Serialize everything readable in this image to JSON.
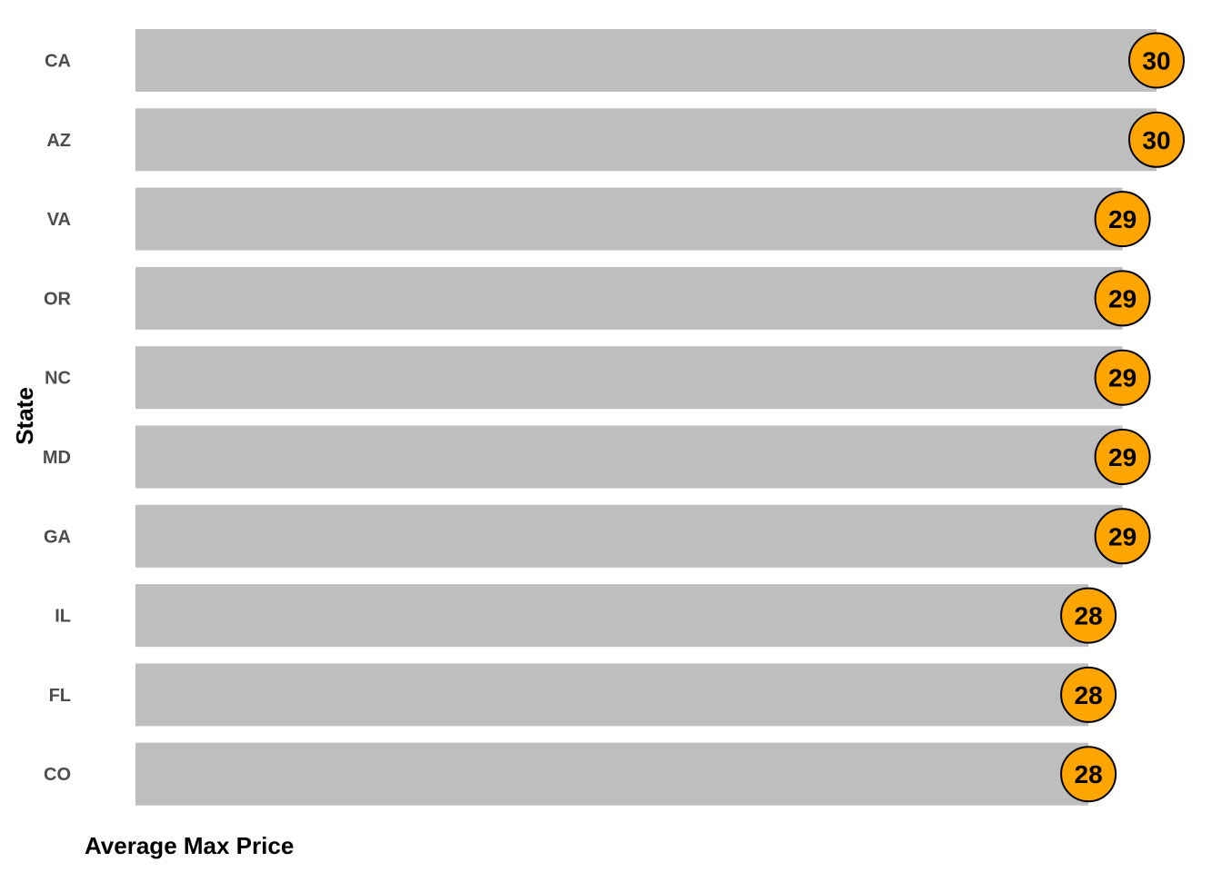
{
  "chart_data": {
    "type": "bar",
    "orientation": "horizontal",
    "categories": [
      "CA",
      "AZ",
      "VA",
      "OR",
      "NC",
      "MD",
      "GA",
      "IL",
      "FL",
      "CO"
    ],
    "values": [
      30,
      30,
      29,
      29,
      29,
      29,
      29,
      28,
      28,
      28
    ],
    "data_labels": [
      "30",
      "30",
      "29",
      "29",
      "29",
      "29",
      "29",
      "28",
      "28",
      "28"
    ],
    "xlabel": "Average Max Price",
    "ylabel": "State",
    "xlim": [
      0,
      30
    ],
    "grid": false,
    "legend": "none"
  },
  "colors": {
    "bar": "#bebebe",
    "marker_fill": "#ffa500",
    "marker_stroke": "#000000",
    "category_text": "#4d4d4d",
    "title_text": "#000000"
  }
}
